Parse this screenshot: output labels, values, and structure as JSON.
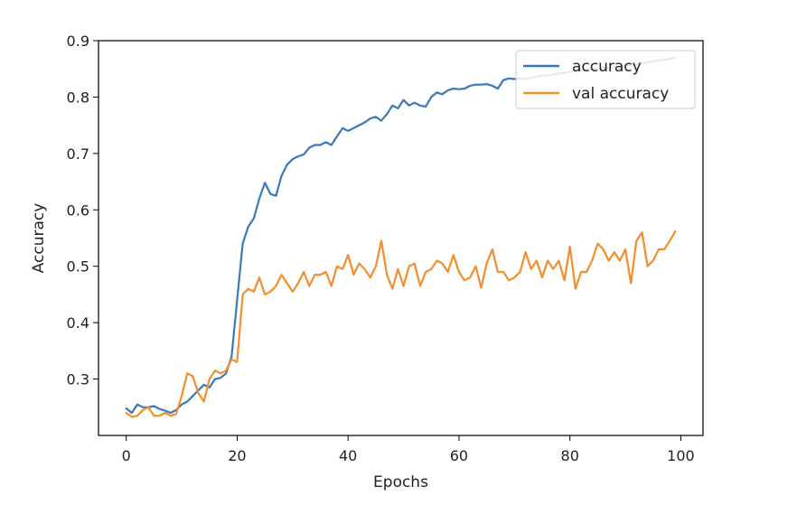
{
  "chart_data": {
    "type": "line",
    "xlabel": "Epochs",
    "ylabel": "Accuracy",
    "xlim": [
      -5,
      104
    ],
    "ylim": [
      0.2,
      0.9
    ],
    "xticks": [
      0,
      20,
      40,
      60,
      80,
      100
    ],
    "yticks": [
      0.3,
      0.4,
      0.5,
      0.6,
      0.7,
      0.8,
      0.9
    ],
    "grid": false,
    "legend_position": "top-right",
    "x": [
      0,
      1,
      2,
      3,
      4,
      5,
      6,
      7,
      8,
      9,
      10,
      11,
      12,
      13,
      14,
      15,
      16,
      17,
      18,
      19,
      20,
      21,
      22,
      23,
      24,
      25,
      26,
      27,
      28,
      29,
      30,
      31,
      32,
      33,
      34,
      35,
      36,
      37,
      38,
      39,
      40,
      41,
      42,
      43,
      44,
      45,
      46,
      47,
      48,
      49,
      50,
      51,
      52,
      53,
      54,
      55,
      56,
      57,
      58,
      59,
      60,
      61,
      62,
      63,
      64,
      65,
      66,
      67,
      68,
      69,
      70,
      71,
      72,
      73,
      74,
      75,
      76,
      77,
      78,
      79,
      80,
      81,
      82,
      83,
      84,
      85,
      86,
      87,
      88,
      89,
      90,
      91,
      92,
      93,
      94,
      95,
      96,
      97,
      98,
      99
    ],
    "series": [
      {
        "name": "accuracy",
        "color": "#3a78b8",
        "values": [
          0.248,
          0.24,
          0.255,
          0.25,
          0.25,
          0.252,
          0.247,
          0.244,
          0.24,
          0.245,
          0.255,
          0.26,
          0.27,
          0.28,
          0.29,
          0.285,
          0.3,
          0.302,
          0.31,
          0.34,
          0.44,
          0.54,
          0.57,
          0.585,
          0.62,
          0.648,
          0.628,
          0.625,
          0.66,
          0.68,
          0.69,
          0.695,
          0.698,
          0.71,
          0.715,
          0.715,
          0.72,
          0.715,
          0.73,
          0.745,
          0.74,
          0.745,
          0.75,
          0.755,
          0.762,
          0.765,
          0.758,
          0.77,
          0.785,
          0.78,
          0.795,
          0.785,
          0.79,
          0.785,
          0.783,
          0.8,
          0.808,
          0.805,
          0.812,
          0.815,
          0.814,
          0.815,
          0.82,
          0.822,
          0.822,
          0.823,
          0.82,
          0.815,
          0.83,
          0.833,
          0.832,
          0.833,
          0.832,
          0.834,
          0.836,
          0.838,
          0.838,
          0.84,
          0.842,
          0.843,
          0.845,
          0.845,
          0.848,
          0.848,
          0.85,
          0.85,
          0.852,
          0.852,
          0.853,
          0.855,
          0.856,
          0.857,
          0.858,
          0.86,
          0.862,
          0.863,
          0.865,
          0.866,
          0.868,
          0.87
        ]
      },
      {
        "name": "val accuracy",
        "color": "#f28e2b",
        "values": [
          0.24,
          0.233,
          0.235,
          0.245,
          0.25,
          0.235,
          0.235,
          0.24,
          0.235,
          0.238,
          0.27,
          0.31,
          0.305,
          0.275,
          0.26,
          0.3,
          0.315,
          0.31,
          0.315,
          0.335,
          0.33,
          0.45,
          0.46,
          0.455,
          0.48,
          0.45,
          0.455,
          0.465,
          0.485,
          0.47,
          0.455,
          0.47,
          0.49,
          0.465,
          0.485,
          0.485,
          0.49,
          0.465,
          0.5,
          0.495,
          0.52,
          0.485,
          0.505,
          0.495,
          0.48,
          0.5,
          0.545,
          0.485,
          0.46,
          0.495,
          0.465,
          0.5,
          0.505,
          0.465,
          0.49,
          0.495,
          0.51,
          0.505,
          0.49,
          0.52,
          0.49,
          0.475,
          0.48,
          0.5,
          0.462,
          0.505,
          0.53,
          0.49,
          0.49,
          0.475,
          0.48,
          0.49,
          0.525,
          0.495,
          0.51,
          0.48,
          0.51,
          0.495,
          0.51,
          0.475,
          0.535,
          0.46,
          0.49,
          0.49,
          0.51,
          0.54,
          0.53,
          0.51,
          0.525,
          0.51,
          0.53,
          0.47,
          0.545,
          0.56,
          0.5,
          0.51,
          0.53,
          0.53,
          0.545,
          0.562
        ]
      }
    ]
  }
}
